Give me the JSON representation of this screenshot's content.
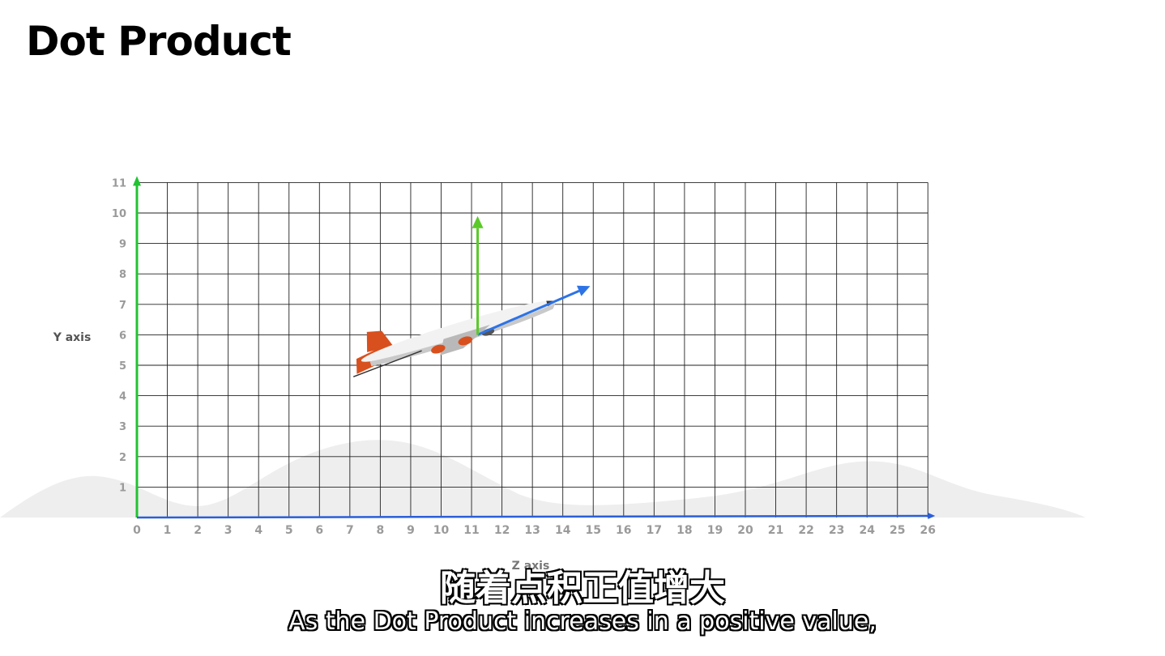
{
  "title": "Dot Product",
  "diagram": {
    "x_ticks": [
      "0",
      "1",
      "2",
      "3",
      "4",
      "5",
      "6",
      "7",
      "8",
      "9",
      "10",
      "11",
      "12",
      "13",
      "14",
      "15",
      "16",
      "17",
      "18",
      "19",
      "20",
      "21",
      "22",
      "23",
      "24",
      "25",
      "26"
    ],
    "y_ticks": [
      "1",
      "2",
      "3",
      "4",
      "5",
      "6",
      "7",
      "8",
      "9",
      "10",
      "11"
    ],
    "y_axis_label": "Y axis",
    "x_axis_label": "Z axis",
    "colors": {
      "y_axis": "#22c232",
      "z_axis": "#2b5fd9",
      "up_vector": "#5bc92a",
      "forward_vector": "#2d73e6",
      "grid": "#222222",
      "tick_text": "#9a9a9a",
      "terrain": "#eeeeee",
      "plane_body": "#f2f2f2",
      "plane_tail": "#d8501e"
    },
    "up_vector": {
      "from": [
        11.2,
        6.0
      ],
      "to": [
        11.2,
        9.9
      ]
    },
    "forward_vector": {
      "from": [
        11.2,
        6.0
      ],
      "to": [
        14.9,
        7.6
      ]
    },
    "plane_icon": "airplane-icon"
  },
  "subtitles": {
    "chinese": "随着点积正值增大",
    "english": "As the Dot Product increases in a positive value,"
  }
}
